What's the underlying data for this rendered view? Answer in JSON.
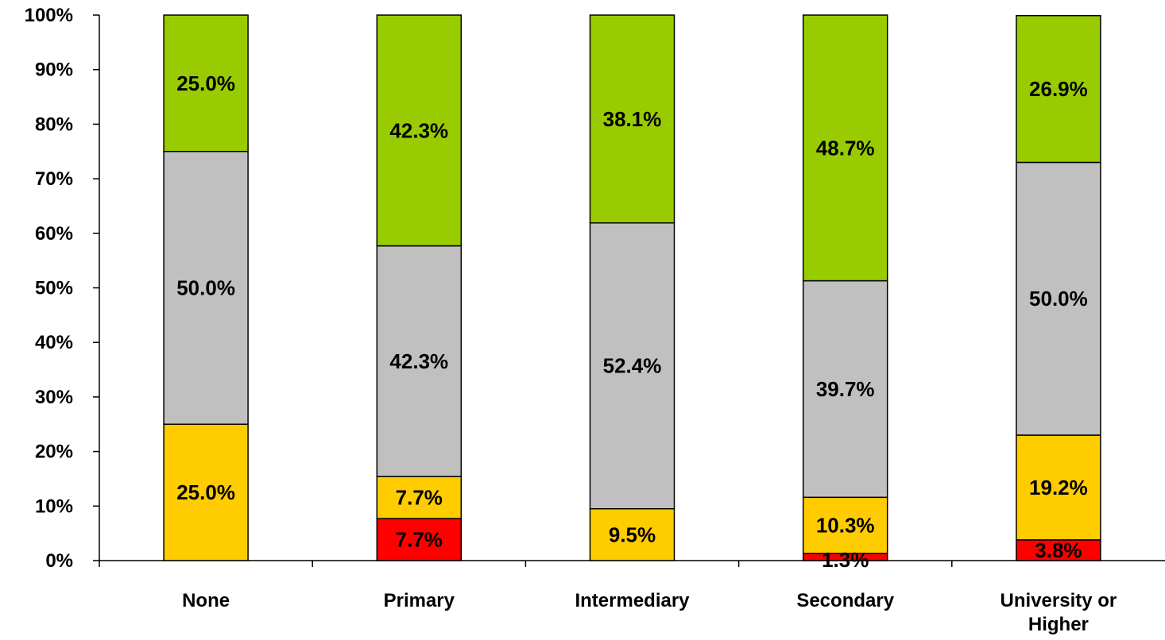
{
  "chart_data": {
    "type": "bar",
    "stacked": true,
    "percent_stacked": true,
    "categories": [
      "None",
      "Primary",
      "Intermediary",
      "Secondary",
      "University or Higher"
    ],
    "category_label_lines": [
      [
        "None"
      ],
      [
        "Primary"
      ],
      [
        "Intermediary"
      ],
      [
        "Secondary"
      ],
      [
        "University or",
        "Higher"
      ]
    ],
    "series": [
      {
        "color": "#ff0000",
        "values": [
          0,
          7.7,
          0,
          1.3,
          3.8
        ],
        "labels": [
          "",
          "7.7%",
          "",
          "1.3%",
          "3.8%"
        ]
      },
      {
        "color": "#ffcc00",
        "values": [
          25.0,
          7.7,
          9.5,
          10.3,
          19.2
        ],
        "labels": [
          "25.0%",
          "7.7%",
          "9.5%",
          "10.3%",
          "19.2%"
        ]
      },
      {
        "color": "#c0c0c0",
        "values": [
          50.0,
          42.3,
          52.4,
          39.7,
          50.0
        ],
        "labels": [
          "50.0%",
          "42.3%",
          "52.4%",
          "39.7%",
          "50.0%"
        ]
      },
      {
        "color": "#99cc00",
        "values": [
          25.0,
          42.3,
          38.1,
          48.7,
          26.9
        ],
        "labels": [
          "25.0%",
          "42.3%",
          "38.1%",
          "48.7%",
          "26.9%"
        ]
      }
    ],
    "ylim": [
      0,
      100
    ],
    "yticks": [
      "0%",
      "10%",
      "20%",
      "30%",
      "40%",
      "50%",
      "60%",
      "70%",
      "80%",
      "90%",
      "100%"
    ],
    "title": "",
    "xlabel": "",
    "ylabel": "",
    "grid": false,
    "legend": "none"
  }
}
